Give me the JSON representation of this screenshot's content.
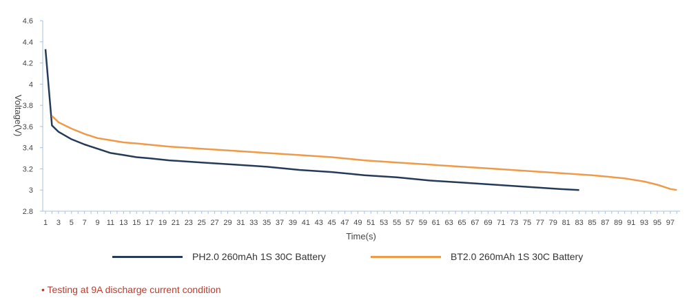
{
  "chart_data": {
    "type": "line",
    "xlabel": "Time(s)",
    "ylabel": "Voltage(V)",
    "xlim": [
      1,
      98
    ],
    "ylim": [
      2.8,
      4.6
    ],
    "y_ticks": [
      "2.8",
      "3",
      "3.2",
      "3.4",
      "3.6",
      "3.8",
      "4",
      "4.2",
      "4.4",
      "4.6"
    ],
    "x_tick_labels": [
      "1",
      "3",
      "5",
      "7",
      "9",
      "11",
      "13",
      "15",
      "17",
      "19",
      "21",
      "23",
      "25",
      "27",
      "29",
      "31",
      "33",
      "35",
      "37",
      "39",
      "41",
      "43",
      "45",
      "47",
      "49",
      "51",
      "53",
      "55",
      "57",
      "59",
      "61",
      "63",
      "65",
      "67",
      "69",
      "71",
      "73",
      "75",
      "77",
      "79",
      "81",
      "83",
      "85",
      "87",
      "89",
      "91",
      "93",
      "95",
      "97"
    ],
    "grid": false,
    "legend_placement": "bottom",
    "series": [
      {
        "name": "PH2.0 260mAh 1S 30C Battery",
        "color": "#243a56",
        "x": [
          1,
          2,
          3,
          5,
          7,
          9,
          11,
          13,
          15,
          17,
          20,
          25,
          30,
          35,
          40,
          45,
          50,
          55,
          60,
          65,
          70,
          75,
          80,
          83
        ],
        "values": [
          4.33,
          3.61,
          3.55,
          3.48,
          3.43,
          3.39,
          3.35,
          3.33,
          3.31,
          3.3,
          3.28,
          3.26,
          3.24,
          3.22,
          3.19,
          3.17,
          3.14,
          3.12,
          3.09,
          3.07,
          3.05,
          3.03,
          3.01,
          3.0
        ]
      },
      {
        "name": "BT2.0 260mAh 1S 30C Battery",
        "color": "#ee9a48",
        "x": [
          2,
          3,
          5,
          7,
          9,
          11,
          13,
          15,
          20,
          25,
          30,
          35,
          40,
          45,
          50,
          55,
          60,
          65,
          70,
          75,
          80,
          85,
          90,
          93,
          95,
          96,
          97,
          98
        ],
        "values": [
          3.7,
          3.64,
          3.58,
          3.53,
          3.49,
          3.47,
          3.45,
          3.44,
          3.41,
          3.39,
          3.37,
          3.35,
          3.33,
          3.31,
          3.28,
          3.26,
          3.24,
          3.22,
          3.2,
          3.18,
          3.16,
          3.14,
          3.11,
          3.08,
          3.05,
          3.03,
          3.01,
          3.0
        ]
      }
    ]
  },
  "note": "• Testing at 9A discharge current condition"
}
